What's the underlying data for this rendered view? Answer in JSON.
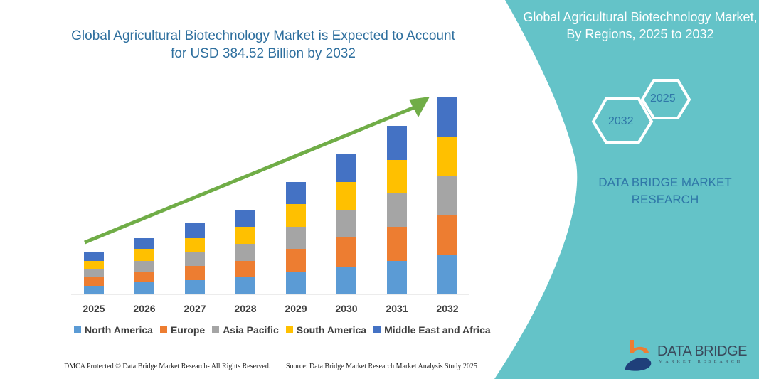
{
  "header": {
    "title": "Global Agricultural Biotechnology Market is Expected to Account for USD 384.52 Billion by 2032"
  },
  "side_panel": {
    "title": "Global Agricultural Biotechnology Market, By Regions, 2025 to 2032",
    "hex_start": "2025",
    "hex_end": "2032",
    "brand": "DATA BRIDGE MARKET RESEARCH",
    "background_color": "#64c3c8"
  },
  "chart_data": {
    "type": "bar",
    "stacked": true,
    "title": "Global Agricultural Biotechnology Market is Expected to Account for USD 384.52 Billion by 2032",
    "xlabel": "",
    "ylabel": "",
    "categories": [
      "2025",
      "2026",
      "2027",
      "2028",
      "2029",
      "2030",
      "2031",
      "2032"
    ],
    "series": [
      {
        "name": "North America",
        "color": "#5b9bd5",
        "values": [
          11,
          16,
          19,
          23,
          31,
          38,
          46,
          54
        ]
      },
      {
        "name": "Europe",
        "color": "#ed7d31",
        "values": [
          12,
          15,
          20,
          23,
          32,
          41,
          48,
          56
        ]
      },
      {
        "name": "Asia Pacific",
        "color": "#a5a5a5",
        "values": [
          11,
          15,
          19,
          24,
          31,
          39,
          47,
          55
        ]
      },
      {
        "name": "South America",
        "color": "#ffc000",
        "values": [
          12,
          17,
          20,
          24,
          32,
          39,
          47,
          56
        ]
      },
      {
        "name": "Middle East and Africa",
        "color": "#4472c4",
        "values": [
          12,
          15,
          21,
          24,
          31,
          40,
          48,
          55
        ]
      }
    ],
    "grid": false,
    "legend_position": "bottom",
    "trend_arrow_color": "#70ad47"
  },
  "footer": {
    "left": "DMCA Protected © Data Bridge Market Research-  All Rights Reserved.",
    "right": "Source: Data Bridge Market Research  Market Analysis Study 2025"
  },
  "logo": {
    "name": "DATA BRIDGE",
    "tagline": "MARKET RESEARCH"
  }
}
